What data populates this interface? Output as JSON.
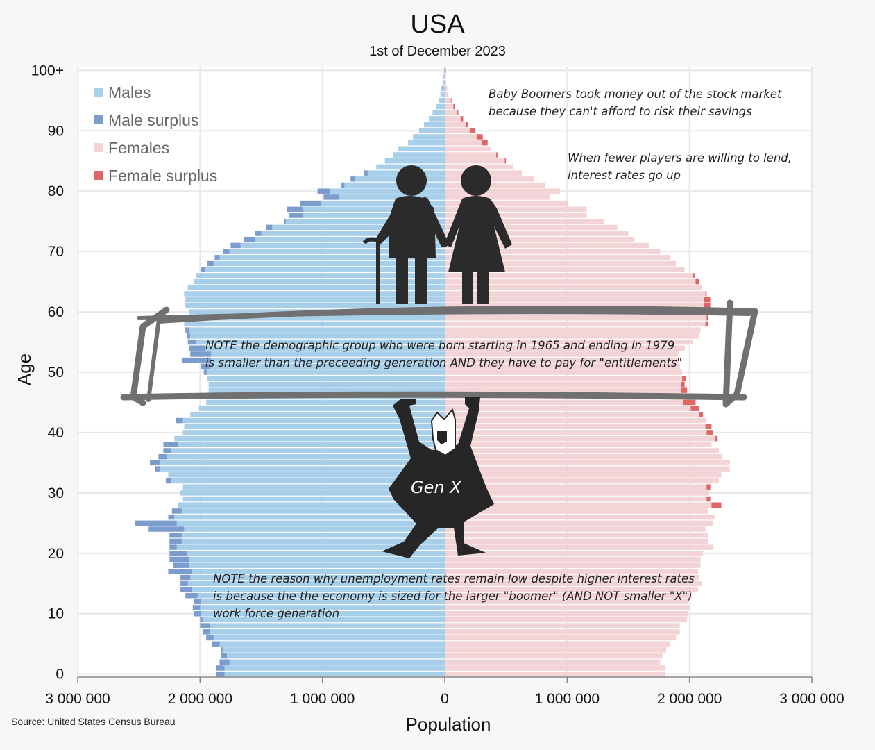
{
  "header": {
    "title": "USA",
    "subtitle": "1st of December 2023"
  },
  "source": "Source: United States Census Bureau",
  "annotations": {
    "note1_line1": "Baby Boomers took money out of the stock market",
    "note1_line2": "because they can't afford to risk their savings",
    "note2_line1": "When fewer players are willing to lend,",
    "note2_line2": "interest rates go up",
    "note3_line1": "NOTE the demographic group who were born starting in 1965 and ending in 1979",
    "note3_line2": "is smaller than the preceeding generation AND they have to pay for \"entitlements\"",
    "note4_line1": "NOTE the reason why unemployment rates remain low despite higher interest rates",
    "note4_line2": "is because the the economy is sized for the larger \"boomer\" (AND NOT smaller \"X\")",
    "note4_line3": "work force generation",
    "genx_label": "Gen X"
  },
  "colors": {
    "males": "#a8cfe9",
    "male_surplus": "#7b9ccd",
    "females": "#f2d3d6",
    "female_surplus": "#e06666",
    "grid": "#ffffff",
    "figure": "#2b2b2b",
    "frame": "#707070"
  },
  "icons": [
    "elderly-man-icon",
    "elderly-woman-icon",
    "genx-figure-icon"
  ],
  "chart_data": {
    "type": "population-pyramid",
    "title": "USA",
    "subtitle": "1st of December 2023",
    "xlabel": "Population",
    "ylabel": "Age",
    "xlim": [
      -3000000,
      3000000
    ],
    "ylim": [
      0,
      100
    ],
    "x_ticks": [
      "3 000 000",
      "2 000 000",
      "1 000 000",
      "0",
      "1 000 000",
      "2 000 000",
      "3 000 000"
    ],
    "y_ticks": [
      "0",
      "10",
      "20",
      "30",
      "40",
      "50",
      "60",
      "70",
      "80",
      "90",
      "100+"
    ],
    "legend": [
      "Males",
      "Male surplus",
      "Females",
      "Female surplus"
    ],
    "legend_position": "top-left",
    "grid": true,
    "ages": [
      0,
      1,
      2,
      3,
      4,
      5,
      6,
      7,
      8,
      9,
      10,
      11,
      12,
      13,
      14,
      15,
      16,
      17,
      18,
      19,
      20,
      21,
      22,
      23,
      24,
      25,
      26,
      27,
      28,
      29,
      30,
      31,
      32,
      33,
      34,
      35,
      36,
      37,
      38,
      39,
      40,
      41,
      42,
      43,
      44,
      45,
      46,
      47,
      48,
      49,
      50,
      51,
      52,
      53,
      54,
      55,
      56,
      57,
      58,
      59,
      60,
      61,
      62,
      63,
      64,
      65,
      66,
      67,
      68,
      69,
      70,
      71,
      72,
      73,
      74,
      75,
      76,
      77,
      78,
      79,
      80,
      81,
      82,
      83,
      84,
      85,
      86,
      87,
      88,
      89,
      90,
      91,
      92,
      93,
      94,
      95,
      96,
      97,
      98,
      99,
      100
    ],
    "series": [
      {
        "name": "Males",
        "values": [
          1870000,
          1870000,
          1840000,
          1830000,
          1830000,
          1900000,
          1950000,
          1980000,
          2000000,
          2000000,
          2050000,
          2060000,
          2050000,
          2120000,
          2160000,
          2160000,
          2160000,
          2260000,
          2220000,
          2250000,
          2250000,
          2250000,
          2250000,
          2250000,
          2420000,
          2530000,
          2260000,
          2230000,
          2180000,
          2140000,
          2160000,
          2140000,
          2280000,
          2260000,
          2370000,
          2410000,
          2340000,
          2300000,
          2300000,
          2210000,
          2140000,
          2130000,
          2200000,
          2080000,
          2010000,
          1950000,
          1940000,
          1930000,
          1930000,
          1940000,
          1970000,
          1990000,
          2150000,
          2080000,
          2090000,
          2100000,
          2110000,
          2120000,
          2130000,
          2140000,
          2090000,
          2120000,
          2120000,
          2130000,
          2100000,
          2050000,
          2030000,
          1990000,
          1940000,
          1880000,
          1810000,
          1750000,
          1640000,
          1550000,
          1460000,
          1310000,
          1270000,
          1290000,
          1180000,
          990000,
          1040000,
          850000,
          770000,
          660000,
          560000,
          490000,
          420000,
          380000,
          300000,
          260000,
          210000,
          170000,
          130000,
          100000,
          70000,
          50000,
          35000,
          25000,
          15000,
          10000,
          8000
        ]
      },
      {
        "name": "Females",
        "values": [
          1800000,
          1800000,
          1760000,
          1780000,
          1810000,
          1840000,
          1890000,
          1920000,
          1920000,
          1980000,
          1990000,
          2000000,
          1990000,
          2020000,
          2070000,
          2100000,
          2080000,
          2070000,
          2090000,
          2090000,
          2110000,
          2190000,
          2150000,
          2150000,
          2130000,
          2190000,
          2210000,
          2150000,
          2260000,
          2170000,
          2160000,
          2170000,
          2240000,
          2260000,
          2330000,
          2330000,
          2270000,
          2240000,
          2180000,
          2230000,
          2190000,
          2180000,
          2140000,
          2110000,
          2080000,
          2050000,
          1990000,
          1980000,
          1960000,
          1970000,
          1940000,
          1920000,
          1910000,
          1910000,
          1960000,
          2030000,
          2080000,
          2090000,
          2150000,
          2150000,
          2180000,
          2170000,
          2170000,
          2140000,
          2100000,
          2080000,
          2040000,
          1960000,
          1890000,
          1840000,
          1760000,
          1670000,
          1550000,
          1500000,
          1410000,
          1300000,
          1160000,
          1160000,
          1010000,
          860000,
          940000,
          820000,
          730000,
          630000,
          560000,
          500000,
          430000,
          380000,
          350000,
          310000,
          250000,
          190000,
          150000,
          110000,
          80000,
          55000,
          30000,
          20000,
          12000,
          8000,
          10000
        ]
      }
    ]
  }
}
